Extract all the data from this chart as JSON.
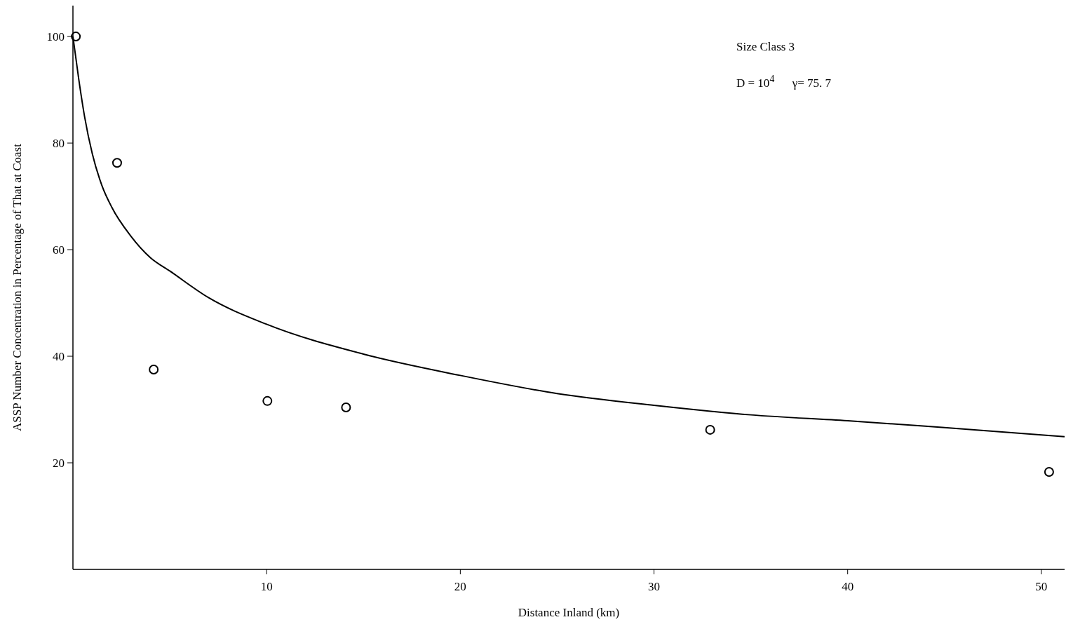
{
  "chart_data": {
    "type": "scatter",
    "xlabel": "Distance Inland (km)",
    "ylabel": "ASSP Number Concentration in Percentage of That at Coast",
    "annotations": [
      "Size Class 3",
      "D = 10$^{4}$      γ= 75. 7"
    ],
    "xlim": [
      0,
      51.2
    ],
    "xticks": [
      10,
      20,
      30,
      40,
      50
    ],
    "ylim": [
      0,
      105.8
    ],
    "yticks": [
      20,
      40,
      60,
      80,
      100
    ],
    "grid": false,
    "series": [
      {
        "marker": "circle",
        "color": "#000000",
        "x": [
          0.15,
          2.28,
          4.17,
          10.04,
          14.1,
          32.9,
          50.4
        ],
        "values": [
          100,
          76.3,
          37.5,
          31.6,
          30.4,
          26.2,
          18.3
        ]
      },
      {
        "type": "line",
        "marker": "none",
        "line_style": "solid",
        "color": "#000000",
        "x": [
          0,
          0.3,
          0.6,
          1,
          1.5,
          2,
          3,
          4,
          5,
          7,
          10,
          15,
          20,
          25,
          30,
          35,
          40,
          45,
          51.2
        ],
        "values": [
          100,
          92,
          85,
          78,
          72,
          68,
          62.5,
          58.5,
          56,
          51,
          46,
          40.4,
          36.4,
          33,
          30.8,
          29,
          27.9,
          26.6,
          24.9
        ]
      }
    ]
  }
}
